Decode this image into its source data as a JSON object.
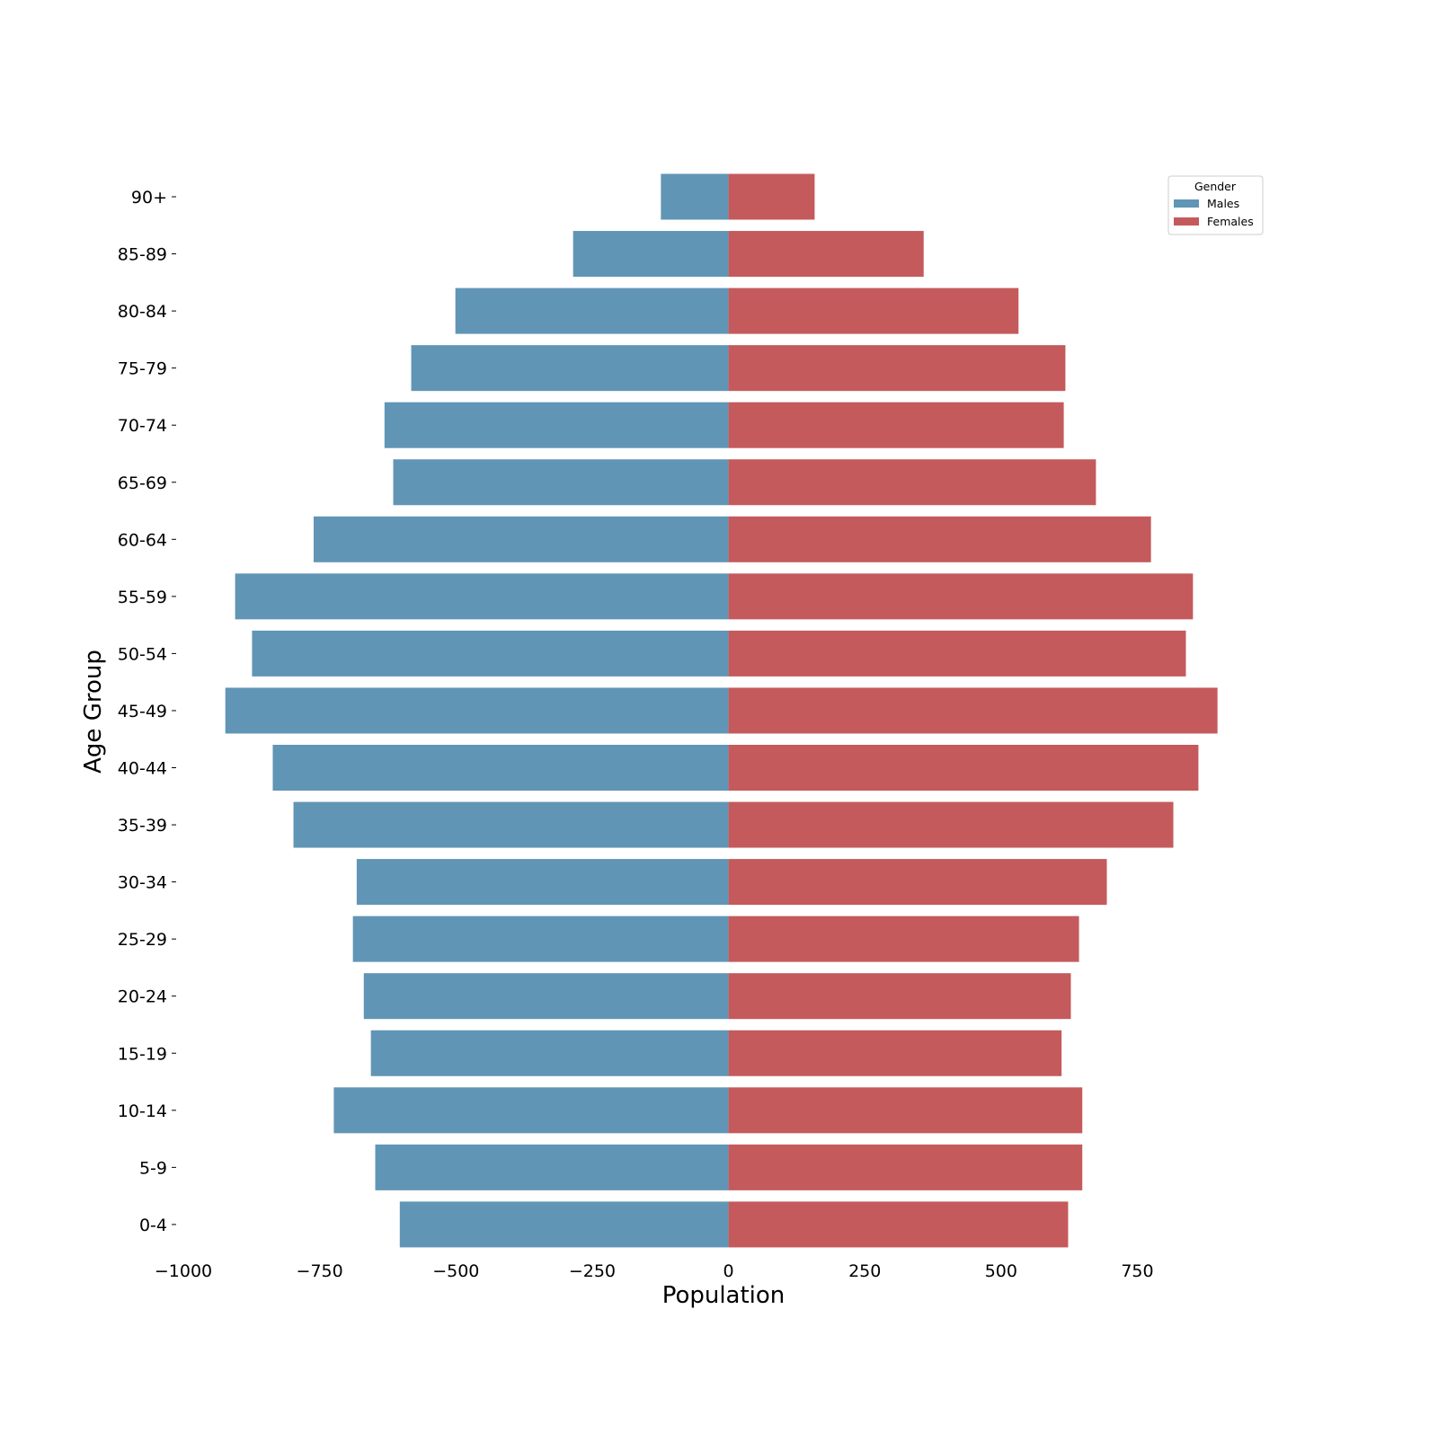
{
  "chart_data": {
    "type": "bar",
    "orientation": "horizontal",
    "title": "",
    "xlabel": "Population",
    "ylabel": "Age Group",
    "xlim": [
      -1000,
      980
    ],
    "xticks": [
      -1000,
      -750,
      -500,
      -250,
      0,
      250,
      500,
      750
    ],
    "xtick_labels": [
      "−1000",
      "−750",
      "−500",
      "−250",
      "0",
      "250",
      "500",
      "750"
    ],
    "categories": [
      "90+",
      "85-89",
      "80-84",
      "75-79",
      "70-74",
      "65-69",
      "60-64",
      "55-59",
      "50-54",
      "45-49",
      "40-44",
      "35-39",
      "30-34",
      "25-29",
      "20-24",
      "15-19",
      "10-14",
      "5-9",
      "0-4"
    ],
    "series": [
      {
        "name": "Males",
        "color": "#6195b5",
        "values": [
          -124,
          -285,
          -501,
          -582,
          -631,
          -615,
          -761,
          -905,
          -874,
          -923,
          -836,
          -798,
          -682,
          -689,
          -669,
          -656,
          -724,
          -648,
          -603
        ]
      },
      {
        "name": "Females",
        "color": "#c45a5c",
        "values": [
          158,
          358,
          532,
          618,
          615,
          674,
          775,
          852,
          839,
          897,
          862,
          816,
          694,
          643,
          628,
          611,
          649,
          649,
          623
        ]
      }
    ],
    "legend": {
      "title": "Gender",
      "placement": "top-right",
      "entries": [
        "Males",
        "Females"
      ]
    },
    "grid": false
  }
}
